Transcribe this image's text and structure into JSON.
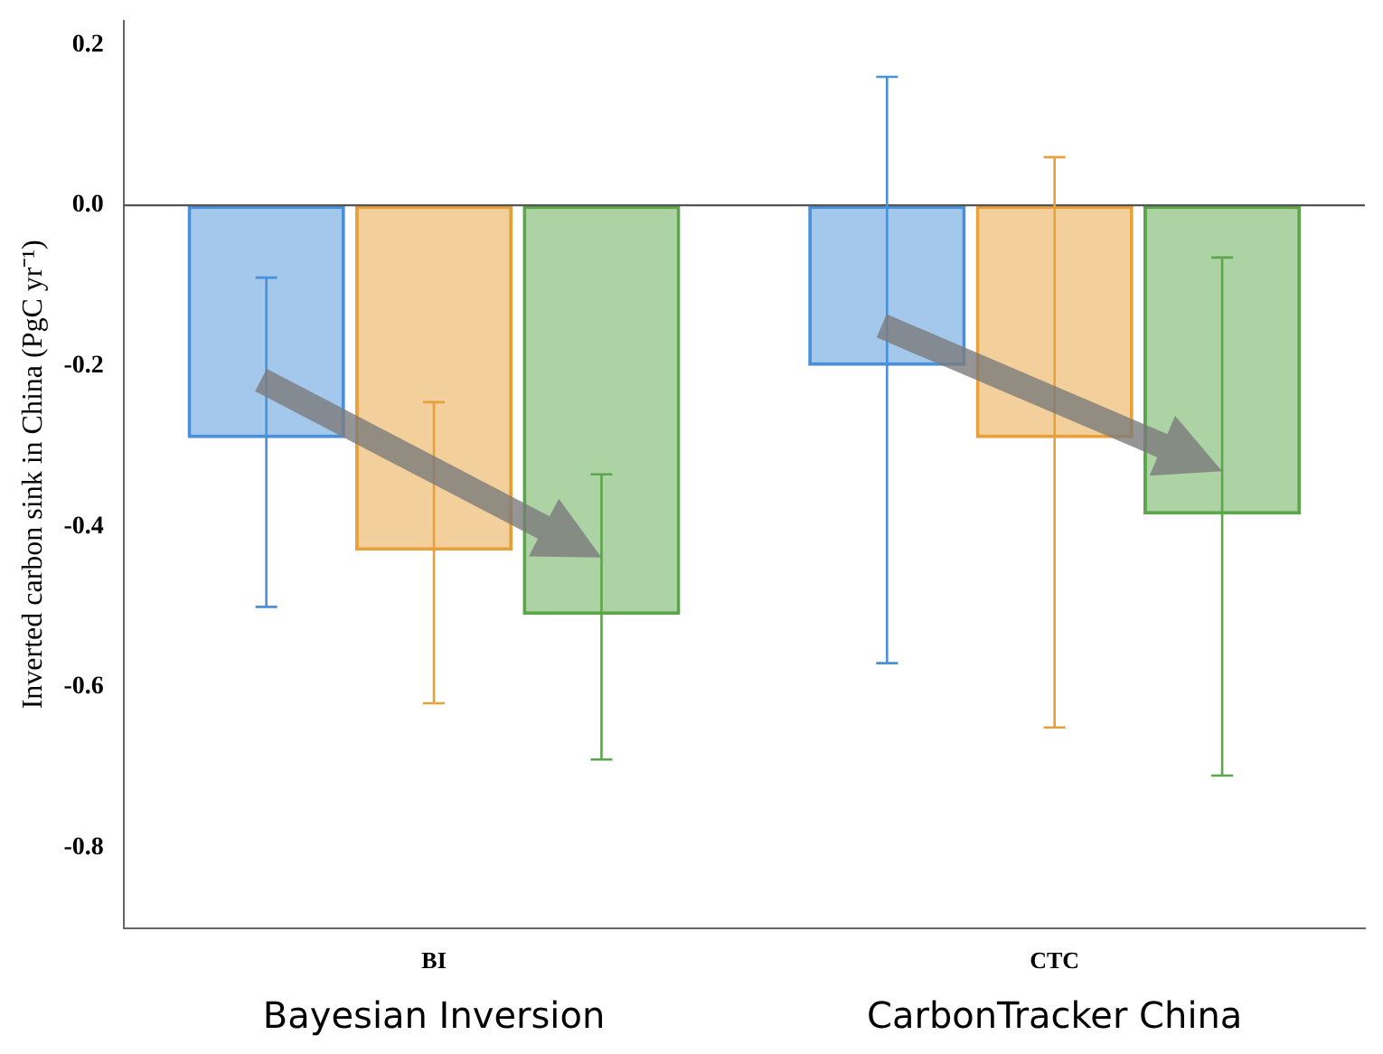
{
  "chart_data": {
    "type": "bar",
    "ylabel": "Inverted carbon sink in China (PgC yr⁻¹)",
    "categories": [
      "BI",
      "CTC"
    ],
    "series": [
      {
        "color": "#4a90d9",
        "values": [
          -0.29,
          -0.2
        ],
        "errors": [
          [
            -0.5,
            -0.09
          ],
          [
            -0.57,
            0.16
          ]
        ]
      },
      {
        "color": "#e8a03a",
        "values": [
          -0.43,
          -0.29
        ],
        "errors": [
          [
            -0.62,
            -0.245
          ],
          [
            -0.65,
            0.06
          ]
        ]
      },
      {
        "color": "#5ca64a",
        "values": [
          -0.51,
          -0.385
        ],
        "errors": [
          [
            -0.69,
            -0.335
          ],
          [
            -0.71,
            -0.065
          ]
        ]
      }
    ],
    "ylim": [
      -0.9,
      0.23
    ],
    "yticks": [
      {
        "value": 0.2,
        "label": "0.2"
      },
      {
        "value": 0,
        "label": "0.0"
      },
      {
        "value": -0.2,
        "label": "-0.2"
      },
      {
        "value": -0.4,
        "label": "-0.4"
      },
      {
        "value": -0.6,
        "label": "-0.6"
      },
      {
        "value": -0.8,
        "label": "-0.8"
      }
    ],
    "ref_lines": [
      {
        "axis": "y",
        "value": 0,
        "color": "#555555"
      }
    ],
    "grid": false,
    "legend": false,
    "annotations": [
      "Bayesian Inversion",
      "CarbonTracker China"
    ]
  }
}
